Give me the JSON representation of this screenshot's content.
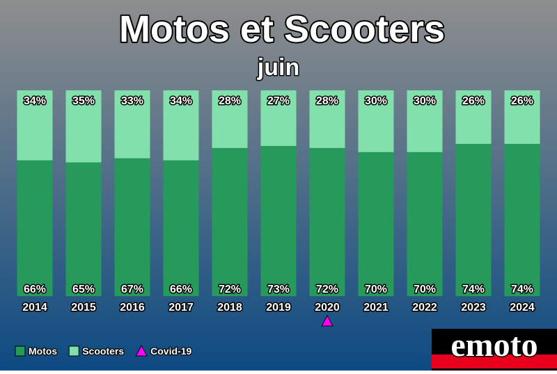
{
  "chart_data": {
    "type": "stacked_bar_percent",
    "title": "Motos et Scooters",
    "subtitle": "juin",
    "categories": [
      "2014",
      "2015",
      "2016",
      "2017",
      "2018",
      "2019",
      "2020",
      "2021",
      "2022",
      "2023",
      "2024"
    ],
    "series": [
      {
        "name": "Motos",
        "color": "#259a5a",
        "values": [
          66,
          65,
          67,
          66,
          72,
          73,
          72,
          70,
          70,
          74,
          74
        ],
        "value_labels": [
          "66%",
          "65%",
          "67%",
          "66%",
          "72%",
          "73%",
          "72%",
          "70%",
          "70%",
          "74%",
          "74%"
        ]
      },
      {
        "name": "Scooters",
        "color": "#82e0ac",
        "values": [
          34,
          35,
          33,
          34,
          28,
          27,
          28,
          30,
          30,
          26,
          26
        ],
        "value_labels": [
          "34%",
          "35%",
          "33%",
          "34%",
          "28%",
          "27%",
          "28%",
          "30%",
          "30%",
          "26%",
          "26%"
        ]
      }
    ],
    "marker": {
      "name": "Covid-19",
      "color": "#ff00ff",
      "category": "2020"
    },
    "ylim": [
      0,
      100
    ],
    "logo": "emoto"
  }
}
